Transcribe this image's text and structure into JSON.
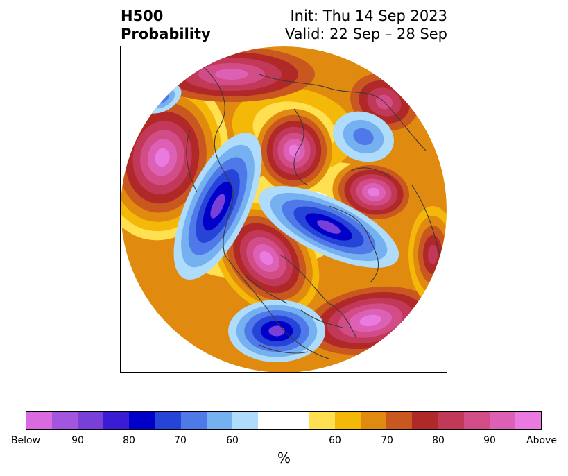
{
  "title": {
    "left_line1": "H500",
    "left_line2": "Probability",
    "right_line1": "Init: Thu 14 Sep 2023",
    "right_line2": "Valid: 22 Sep – 28 Sep"
  },
  "colorbar": {
    "colors": [
      "#d96ae0",
      "#a455e0",
      "#7840d8",
      "#3a1cd4",
      "#0000c8",
      "#2644d8",
      "#4f78e8",
      "#75b0f0",
      "#aedcfa",
      "#ffffff",
      "#ffffff",
      "#fee050",
      "#f4b808",
      "#e08a10",
      "#c85820",
      "#b02828",
      "#c23858",
      "#d24c88",
      "#dc60b4",
      "#e87ae0"
    ],
    "tick_labels": [
      "Below",
      "90",
      "80",
      "70",
      "60",
      "60",
      "70",
      "80",
      "90",
      "Above"
    ],
    "unit": "%"
  },
  "map": {
    "projection": "north polar stereographic",
    "below_colors": [
      "#aedcfa",
      "#75b0f0",
      "#4f78e8",
      "#2644d8",
      "#0000c8",
      "#7840d8"
    ],
    "above_colors": [
      "#fee050",
      "#f4b808",
      "#e08a10",
      "#c85820",
      "#b02828",
      "#c23858",
      "#d24c88",
      "#dc60b4",
      "#e87ae0"
    ]
  }
}
